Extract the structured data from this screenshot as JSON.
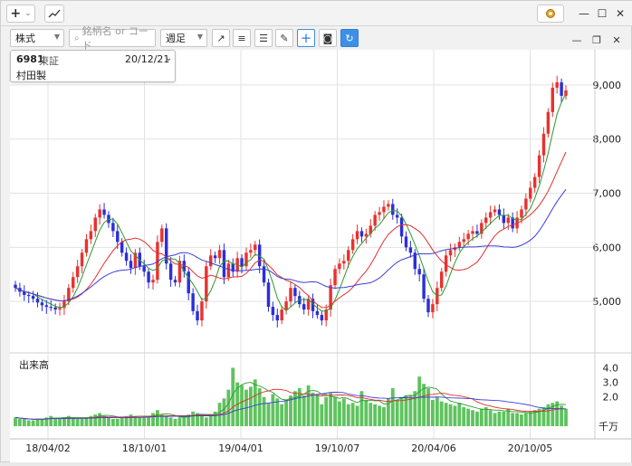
{
  "titlebar": {
    "add_label": "+",
    "add_dropdown": "⌄",
    "chart_type_icon": "chart-icon",
    "gear_icon": "gear-icon",
    "minimize": "—",
    "maximize": "☐",
    "close": "✕"
  },
  "toolbar": {
    "market_select": "株式",
    "search_placeholder": "銘柄名 or コード",
    "period_select": "週足",
    "tools": [
      "trend-line-icon",
      "horizontal-line-icon",
      "fib-icon",
      "pen-icon",
      "crosshair-icon",
      "camera-icon",
      "refresh-icon"
    ]
  },
  "pane_controls": {
    "minimize": "—",
    "restore": "❐",
    "close": "✕"
  },
  "stock": {
    "code": "6981",
    "exchange": "東証",
    "date": "20/12/21",
    "name": "村田製"
  },
  "volume_label": "出来高",
  "volume_unit": "千万",
  "colors": {
    "up": "#e8322f",
    "down": "#2b2fd8",
    "ma_short": "#2d9a2d",
    "ma_mid": "#e0312d",
    "ma_long": "#3b3fd6",
    "volume": "#5fc35f"
  },
  "chart_data": {
    "type": "candlestick",
    "price_axis_ticks": [
      "9,000",
      "8,000",
      "7,000",
      "6,000",
      "5,000"
    ],
    "volume_axis_ticks": [
      "4.0",
      "3.0",
      "2.0"
    ],
    "x_tick_labels": [
      "18/04/02",
      "18/10/01",
      "19/04/01",
      "19/10/07",
      "20/04/06",
      "20/10/05"
    ],
    "ylim": [
      4300,
      9450
    ],
    "volume_ylim": [
      0,
      4.4
    ],
    "closes": [
      5250,
      5180,
      5120,
      5100,
      5050,
      4980,
      4930,
      4900,
      4890,
      4850,
      4880,
      5000,
      5250,
      5450,
      5650,
      5900,
      6150,
      6300,
      6550,
      6700,
      6600,
      6450,
      6300,
      6100,
      5900,
      5750,
      5620,
      5900,
      5650,
      5550,
      5350,
      5400,
      6100,
      6350,
      5700,
      5400,
      5350,
      5750,
      5550,
      5150,
      4820,
      4650,
      5000,
      5650,
      5850,
      5800,
      5950,
      5450,
      5700,
      5550,
      5800,
      5650,
      5900,
      5950,
      6050,
      5650,
      5350,
      4900,
      4750,
      4650,
      4850,
      5000,
      5250,
      5100,
      4950,
      4850,
      5050,
      4820,
      4750,
      4650,
      4850,
      5300,
      5600,
      5700,
      5750,
      5950,
      6150,
      6300,
      6200,
      6250,
      6400,
      6600,
      6650,
      6750,
      6800,
      6600,
      6550,
      6200,
      6000,
      5900,
      5600,
      5500,
      5050,
      4800,
      4950,
      5250,
      5550,
      5850,
      5950,
      6000,
      6100,
      6150,
      6250,
      6300,
      6250,
      6450,
      6550,
      6650,
      6700,
      6600,
      6450,
      6550,
      6350,
      6550,
      6700,
      6900,
      7100,
      7300,
      7700,
      8100,
      8500,
      8950,
      9050,
      8800,
      8900
    ],
    "volume": [
      0.6,
      0.5,
      0.5,
      0.4,
      0.4,
      0.5,
      0.5,
      0.6,
      0.7,
      0.5,
      0.5,
      0.6,
      0.7,
      0.6,
      0.5,
      0.5,
      0.6,
      0.7,
      0.8,
      0.9,
      0.7,
      0.6,
      0.5,
      0.5,
      0.6,
      0.7,
      0.8,
      0.7,
      0.6,
      0.6,
      0.7,
      0.9,
      1.1,
      0.8,
      0.7,
      0.6,
      0.5,
      0.6,
      0.7,
      0.8,
      1.0,
      0.9,
      0.7,
      0.6,
      0.8,
      1.0,
      1.6,
      1.9,
      2.5,
      4.0,
      3.0,
      2.8,
      2.5,
      2.7,
      3.2,
      2.6,
      2.0,
      1.6,
      2.2,
      1.9,
      1.5,
      1.8,
      2.1,
      2.4,
      2.6,
      2.1,
      2.8,
      2.3,
      2.2,
      1.5,
      2.0,
      2.3,
      2.0,
      1.7,
      1.9,
      1.5,
      1.6,
      1.4,
      2.4,
      1.8,
      1.6,
      1.5,
      1.4,
      1.3,
      1.9,
      2.6,
      1.8,
      2.0,
      2.1,
      2.1,
      2.4,
      3.4,
      2.9,
      2.6,
      1.8,
      2.0,
      1.7,
      1.6,
      1.5,
      1.4,
      1.6,
      1.3,
      1.2,
      1.1,
      1.0,
      1.2,
      1.3,
      1.1,
      0.9,
      1.0,
      1.0,
      1.2,
      0.9,
      0.9,
      0.8,
      0.9,
      1.0,
      1.1,
      1.2,
      1.3,
      1.5,
      1.6,
      1.7,
      1.4,
      1.2
    ]
  }
}
